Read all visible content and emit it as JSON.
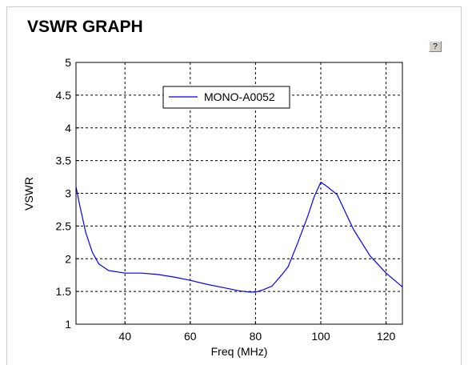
{
  "panel": {
    "title": "VSWR GRAPH",
    "help_label": "?"
  },
  "chart_data": {
    "type": "line",
    "title": "",
    "xlabel": "Freq (MHz)",
    "ylabel": "VSWR",
    "xlim": [
      25,
      125
    ],
    "ylim": [
      1,
      5
    ],
    "xticks": [
      40,
      60,
      80,
      100,
      120
    ],
    "yticks": [
      1,
      1.5,
      2,
      2.5,
      3,
      3.5,
      4,
      4.5,
      5
    ],
    "xtick_labels": [
      "40",
      "60",
      "80",
      "100",
      "120"
    ],
    "ytick_labels": [
      "1",
      "1.5",
      "2",
      "2.5",
      "3",
      "3.5",
      "4",
      "4.5",
      "5"
    ],
    "grid": true,
    "legend": "top-center",
    "series": [
      {
        "name": "MONO-A0052",
        "color": "#0000ff",
        "x": [
          25,
          26,
          28,
          30,
          32,
          35,
          40,
          45,
          50,
          55,
          60,
          65,
          70,
          75,
          78,
          80,
          82,
          85,
          88,
          90,
          93,
          96,
          98,
          100,
          102,
          105,
          110,
          115,
          120,
          125
        ],
        "y": [
          3.1,
          2.85,
          2.4,
          2.1,
          1.92,
          1.82,
          1.78,
          1.78,
          1.76,
          1.72,
          1.67,
          1.61,
          1.56,
          1.51,
          1.49,
          1.49,
          1.52,
          1.58,
          1.75,
          1.88,
          2.25,
          2.65,
          2.95,
          3.17,
          3.1,
          2.98,
          2.45,
          2.05,
          1.78,
          1.57
        ]
      }
    ]
  }
}
